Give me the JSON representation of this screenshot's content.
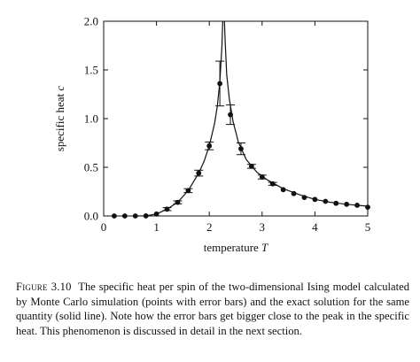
{
  "chart_data": {
    "type": "line",
    "xlabel": "temperature",
    "xlabel_var": "T",
    "ylabel": "specific heat",
    "ylabel_var": "c",
    "xlim": [
      0,
      5
    ],
    "ylim": [
      0,
      2.0
    ],
    "x_ticks": [
      0,
      1,
      2,
      3,
      4,
      5
    ],
    "y_ticks": [
      0.0,
      0.5,
      1.0,
      1.5,
      2.0
    ],
    "y_tick_labels": [
      "0.0",
      "0.5",
      "1.0",
      "1.5",
      "2.0"
    ],
    "grid": false,
    "critical_temperature": 2.269,
    "series": [
      {
        "kind": "points-with-error-bars",
        "x": [
          0.2,
          0.4,
          0.6,
          0.8,
          1.0,
          1.2,
          1.4,
          1.6,
          1.8,
          2.0,
          2.2,
          2.4,
          2.6,
          2.8,
          3.0,
          3.2,
          3.4,
          3.6,
          3.8,
          4.0,
          4.2,
          4.4,
          4.6,
          4.8,
          5.0
        ],
        "y": [
          0.0,
          0.0,
          0.0,
          0.001,
          0.02,
          0.07,
          0.14,
          0.26,
          0.44,
          0.72,
          1.36,
          1.04,
          0.69,
          0.51,
          0.4,
          0.33,
          0.27,
          0.23,
          0.19,
          0.17,
          0.15,
          0.13,
          0.12,
          0.11,
          0.09
        ],
        "err": [
          0,
          0,
          0,
          0,
          0.01,
          0.015,
          0.015,
          0.02,
          0.03,
          0.04,
          0.23,
          0.1,
          0.06,
          0.02,
          0.02,
          0.015,
          0.01,
          0.01,
          0.01,
          0.01,
          0.01,
          0.01,
          0.01,
          0.01,
          0.01
        ]
      },
      {
        "kind": "exact-solution-line",
        "x": [
          0.6,
          0.8,
          1.0,
          1.2,
          1.4,
          1.6,
          1.8,
          1.9,
          2.0,
          2.1,
          2.15,
          2.2,
          2.24,
          2.26,
          2.28,
          2.3,
          2.33,
          2.38,
          2.45,
          2.55,
          2.7,
          2.9,
          3.1,
          3.4,
          3.7,
          4.0,
          4.3,
          4.6,
          5.0
        ],
        "y": [
          0.0,
          0.001,
          0.02,
          0.07,
          0.14,
          0.26,
          0.44,
          0.56,
          0.72,
          0.95,
          1.12,
          1.38,
          1.75,
          2.1,
          2.1,
          1.8,
          1.45,
          1.2,
          0.97,
          0.76,
          0.58,
          0.45,
          0.37,
          0.28,
          0.22,
          0.17,
          0.14,
          0.12,
          0.1
        ]
      }
    ]
  },
  "caption": {
    "figure_label": "Figure 3.10",
    "text": "The specific heat per spin of the two-dimensional Ising model calculated by Monte Carlo simulation (points with error bars) and the exact solution for the same quantity (solid line). Note how the error bars get bigger close to the peak in the specific heat. This phenomenon is discussed in detail in the next section."
  }
}
